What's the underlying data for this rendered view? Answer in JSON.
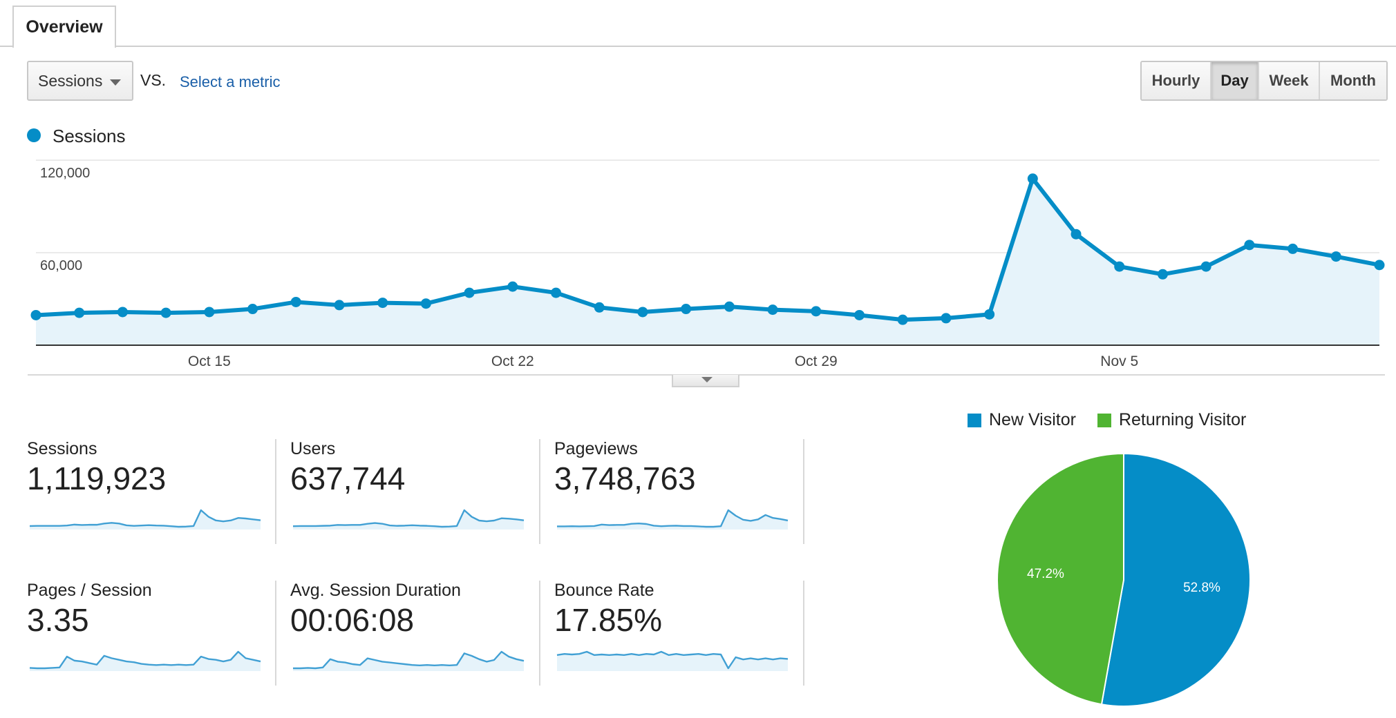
{
  "tabs": {
    "overview": "Overview"
  },
  "controls": {
    "metric_select": "Sessions",
    "vs": "VS.",
    "select_metric": "Select a metric",
    "ranges": [
      "Hourly",
      "Day",
      "Week",
      "Month"
    ],
    "active_range": "Day"
  },
  "colors": {
    "sessions": "#058dc7",
    "new_visitor": "#058dc7",
    "returning_visitor": "#50b432",
    "area_fill": "#e6f3fa"
  },
  "icons": {
    "dropdown": "caret-down-icon",
    "chart_toggle": "caret-down-icon"
  },
  "chart_data": [
    {
      "type": "line",
      "legend": [
        "Sessions"
      ],
      "y_ticks": [
        "120,000",
        "60,000"
      ],
      "x_ticks": [
        "Oct 15",
        "Oct 22",
        "Oct 29",
        "Nov 5"
      ],
      "ylim": [
        0,
        120000
      ],
      "series": [
        {
          "name": "Sessions",
          "x": [
            "Oct 11",
            "Oct 12",
            "Oct 13",
            "Oct 14",
            "Oct 15",
            "Oct 16",
            "Oct 17",
            "Oct 18",
            "Oct 19",
            "Oct 20",
            "Oct 21",
            "Oct 22",
            "Oct 23",
            "Oct 24",
            "Oct 25",
            "Oct 26",
            "Oct 27",
            "Oct 28",
            "Oct 29",
            "Oct 30",
            "Oct 31",
            "Nov 1",
            "Nov 2",
            "Nov 3",
            "Nov 4",
            "Nov 5",
            "Nov 6",
            "Nov 7",
            "Nov 8",
            "Nov 9",
            "Nov 10",
            "Nov 11"
          ],
          "values": [
            19500,
            21000,
            21500,
            21000,
            21500,
            23500,
            28000,
            26000,
            27500,
            27000,
            34000,
            38000,
            34000,
            24500,
            21500,
            23500,
            25000,
            23000,
            22000,
            19500,
            16500,
            17500,
            20000,
            108000,
            72000,
            51000,
            46000,
            51000,
            65000,
            62500,
            57500,
            52000
          ]
        }
      ]
    },
    {
      "type": "pie",
      "legend": [
        "New Visitor",
        "Returning Visitor"
      ],
      "slices": [
        {
          "label": "New Visitor",
          "value": 52.8,
          "text": "52.8%"
        },
        {
          "label": "Returning Visitor",
          "value": 47.2,
          "text": "47.2%"
        }
      ]
    }
  ],
  "metrics": [
    {
      "label": "Sessions",
      "value": "1,119,923",
      "spark": [
        20,
        21,
        21,
        21,
        21,
        23,
        28,
        26,
        27,
        27,
        34,
        38,
        34,
        24,
        21,
        23,
        25,
        23,
        22,
        19,
        16,
        17,
        20,
        108,
        72,
        51,
        46,
        51,
        65,
        62,
        57,
        52
      ]
    },
    {
      "label": "Users",
      "value": "637,744",
      "spark": [
        20,
        21,
        21,
        21,
        22,
        23,
        27,
        26,
        27,
        27,
        33,
        37,
        33,
        24,
        22,
        23,
        25,
        23,
        22,
        20,
        17,
        18,
        21,
        105,
        70,
        50,
        46,
        50,
        62,
        60,
        56,
        51
      ]
    },
    {
      "label": "Pageviews",
      "value": "3,748,763",
      "spark": [
        20,
        20,
        21,
        20,
        21,
        22,
        30,
        27,
        28,
        28,
        34,
        36,
        33,
        24,
        21,
        23,
        24,
        22,
        22,
        20,
        18,
        18,
        21,
        108,
        78,
        56,
        50,
        58,
        82,
        66,
        60,
        52
      ]
    },
    {
      "label": "Pages / Session",
      "value": "3.35",
      "spark": [
        30,
        29,
        29,
        30,
        31,
        58,
        48,
        46,
        42,
        38,
        60,
        54,
        50,
        46,
        44,
        40,
        38,
        37,
        38,
        37,
        38,
        37,
        38,
        58,
        52,
        50,
        46,
        50,
        70,
        54,
        50,
        46
      ]
    },
    {
      "label": "Avg. Session Duration",
      "value": "00:06:08",
      "spark": [
        30,
        30,
        31,
        30,
        32,
        52,
        46,
        44,
        40,
        38,
        54,
        50,
        46,
        44,
        42,
        40,
        38,
        37,
        38,
        37,
        38,
        37,
        38,
        66,
        60,
        52,
        46,
        50,
        70,
        58,
        52,
        48
      ]
    },
    {
      "label": "Bounce Rate",
      "value": "17.85%",
      "spark": [
        54,
        56,
        55,
        56,
        60,
        54,
        55,
        54,
        55,
        54,
        56,
        54,
        56,
        55,
        60,
        54,
        56,
        54,
        55,
        56,
        54,
        56,
        55,
        30,
        50,
        46,
        48,
        46,
        48,
        46,
        48,
        47
      ]
    }
  ]
}
